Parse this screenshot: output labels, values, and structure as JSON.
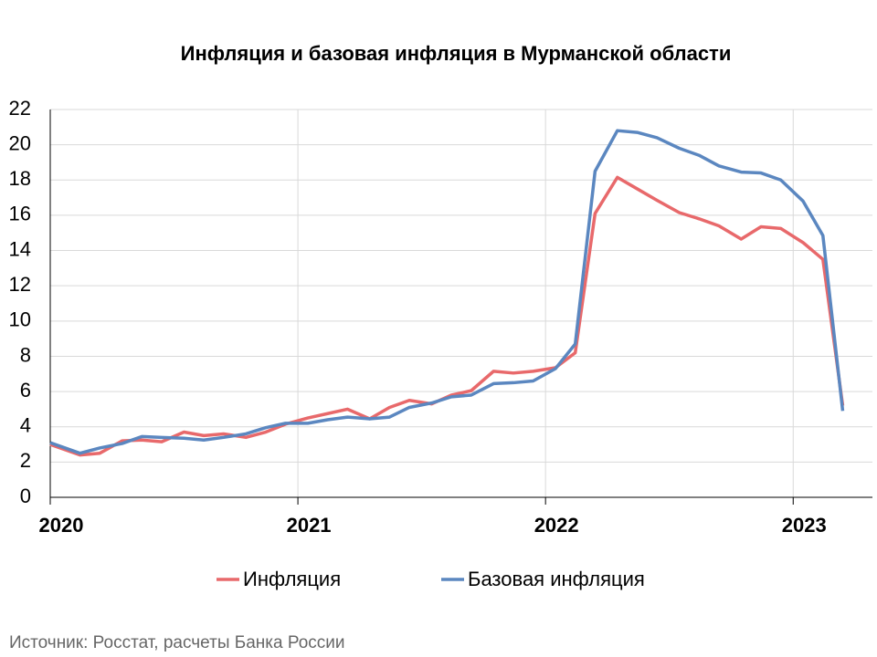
{
  "chart_data": {
    "type": "line",
    "title": "Инфляция и базовая инфляция в Мурманской области",
    "source": "Источник: Росстат, расчеты Банка России",
    "x": [
      2020.0,
      2020.12,
      2020.2,
      2020.29,
      2020.37,
      2020.45,
      2020.54,
      2020.62,
      2020.7,
      2020.79,
      2020.87,
      2020.95,
      2021.04,
      2021.12,
      2021.2,
      2021.29,
      2021.37,
      2021.45,
      2021.54,
      2021.62,
      2021.7,
      2021.79,
      2021.87,
      2021.95,
      2022.04,
      2022.12,
      2022.2,
      2022.29,
      2022.37,
      2022.45,
      2022.54,
      2022.62,
      2022.7,
      2022.79,
      2022.87,
      2022.95,
      2023.04,
      2023.12,
      2023.2
    ],
    "series": [
      {
        "name": "Инфляция",
        "color": "#e8696b",
        "values": [
          3.0,
          2.4,
          2.5,
          3.2,
          3.25,
          3.15,
          3.7,
          3.5,
          3.6,
          3.4,
          3.7,
          4.15,
          4.5,
          4.75,
          5.0,
          4.45,
          5.1,
          5.5,
          5.3,
          5.8,
          6.05,
          7.15,
          7.05,
          7.15,
          7.35,
          8.2,
          16.1,
          18.15,
          17.5,
          16.85,
          16.15,
          15.8,
          15.4,
          14.65,
          15.35,
          15.25,
          14.45,
          13.5,
          5.2
        ]
      },
      {
        "name": "Базовая инфляция",
        "color": "#5b87c0",
        "values": [
          3.1,
          2.5,
          2.8,
          3.05,
          3.45,
          3.4,
          3.35,
          3.25,
          3.4,
          3.6,
          3.95,
          4.2,
          4.2,
          4.4,
          4.55,
          4.45,
          4.55,
          5.1,
          5.35,
          5.7,
          5.8,
          6.45,
          6.5,
          6.6,
          7.3,
          8.7,
          18.5,
          20.8,
          20.7,
          20.4,
          19.8,
          19.4,
          18.8,
          18.45,
          18.4,
          18.0,
          16.8,
          14.85,
          4.9
        ]
      }
    ],
    "xlim": [
      2020,
      2023.32
    ],
    "xticks": [
      2020,
      2021,
      2022,
      2023
    ],
    "ylim": [
      0,
      22
    ],
    "yticks": [
      0,
      2,
      4,
      6,
      8,
      10,
      12,
      14,
      16,
      18,
      20,
      22
    ],
    "grid": true
  }
}
